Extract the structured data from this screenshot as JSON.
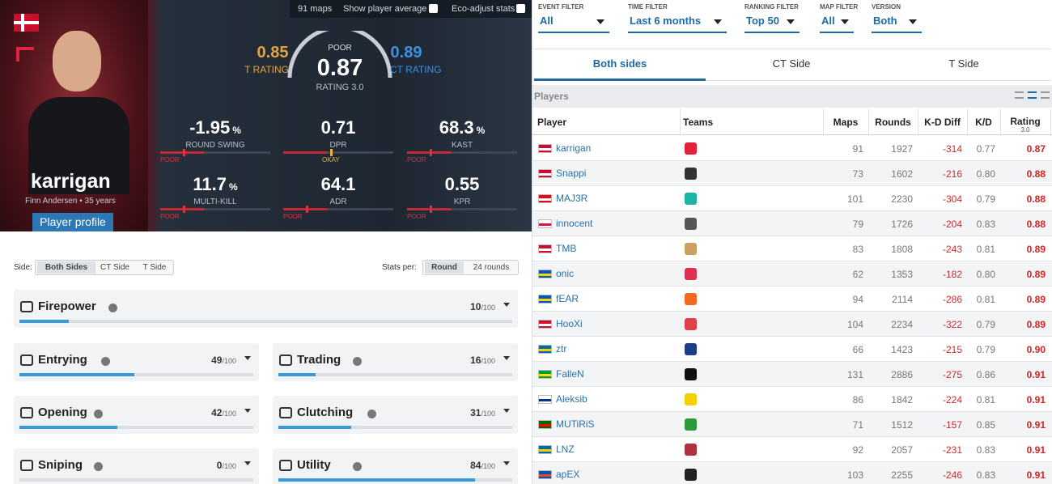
{
  "player_card": {
    "top_bar": [
      "91 maps",
      "Show player average",
      "Eco-adjust stats"
    ],
    "name": "karrigan",
    "subtitle": "Finn Andersen • 35 years",
    "profile_button": "Player profile",
    "t_rating": {
      "value": "0.85",
      "label": "T RATING"
    },
    "ct_rating": {
      "value": "0.89",
      "label": "CT RATING"
    },
    "rating": {
      "grade": "POOR",
      "value": "0.87",
      "label": "RATING 3.0"
    },
    "stats": [
      {
        "value": "-1.95",
        "unit": "%",
        "label": "ROUND SWING",
        "grade": "POOR"
      },
      {
        "value": "0.71",
        "label": "DPR",
        "grade": "OKAY"
      },
      {
        "value": "68.3",
        "unit": "%",
        "label": "KAST",
        "grade": "POOR"
      },
      {
        "value": "11.7",
        "unit": "%",
        "label": "MULTI-KILL",
        "grade": "POOR"
      },
      {
        "value": "64.1",
        "label": "ADR",
        "grade": "POOR"
      },
      {
        "value": "0.55",
        "label": "KPR",
        "grade": "POOR"
      }
    ]
  },
  "controls": {
    "side_label": "Side:",
    "side_options": [
      "Both Sides",
      "CT Side",
      "T Side"
    ],
    "per_label": "Stats per:",
    "per_options": [
      "Round",
      "24 rounds"
    ]
  },
  "categories": {
    "scale": 100,
    "scale_label": "/100",
    "items": [
      {
        "name": "Firepower",
        "score": 10
      },
      {
        "name": "Entrying",
        "score": 49
      },
      {
        "name": "Trading",
        "score": 16
      },
      {
        "name": "Opening",
        "score": 42
      },
      {
        "name": "Clutching",
        "score": 31
      },
      {
        "name": "Sniping",
        "score": 0
      },
      {
        "name": "Utility",
        "score": 84
      }
    ]
  },
  "filters": [
    {
      "label": "EVENT FILTER",
      "value": "All"
    },
    {
      "label": "TIME FILTER",
      "value": "Last 6 months"
    },
    {
      "label": "RANKING FILTER",
      "value": "Top 50"
    },
    {
      "label": "MAP FILTER",
      "value": "All"
    },
    {
      "label": "VERSION",
      "value": "Both"
    }
  ],
  "tabs": [
    "Both sides",
    "CT Side",
    "T Side"
  ],
  "table": {
    "title": "Players",
    "columns": [
      "Player",
      "Teams",
      "Maps",
      "Rounds",
      "K-D Diff",
      "K/D",
      "Rating"
    ],
    "rating_sub": "3.0",
    "rows": [
      [
        "karrigan",
        "91",
        "1927",
        "-314",
        "0.77",
        "0.87"
      ],
      [
        "Snappi",
        "73",
        "1602",
        "-216",
        "0.80",
        "0.88"
      ],
      [
        "MAJ3R",
        "101",
        "2230",
        "-304",
        "0.79",
        "0.88"
      ],
      [
        "innocent",
        "79",
        "1726",
        "-204",
        "0.83",
        "0.88"
      ],
      [
        "TMB",
        "83",
        "1808",
        "-243",
        "0.81",
        "0.89"
      ],
      [
        "onic",
        "62",
        "1353",
        "-182",
        "0.80",
        "0.89"
      ],
      [
        "fEAR",
        "94",
        "2114",
        "-286",
        "0.81",
        "0.89"
      ],
      [
        "HooXi",
        "104",
        "2234",
        "-322",
        "0.79",
        "0.89"
      ],
      [
        "ztr",
        "66",
        "1423",
        "-215",
        "0.79",
        "0.90"
      ],
      [
        "FalleN",
        "131",
        "2886",
        "-275",
        "0.86",
        "0.91"
      ],
      [
        "Aleksib",
        "86",
        "1842",
        "-224",
        "0.81",
        "0.91"
      ],
      [
        "MUTiRiS",
        "71",
        "1512",
        "-157",
        "0.85",
        "0.91"
      ],
      [
        "LNZ",
        "92",
        "2057",
        "-231",
        "0.83",
        "0.91"
      ],
      [
        "apEX",
        "103",
        "2255",
        "-246",
        "0.83",
        "0.91"
      ]
    ]
  }
}
